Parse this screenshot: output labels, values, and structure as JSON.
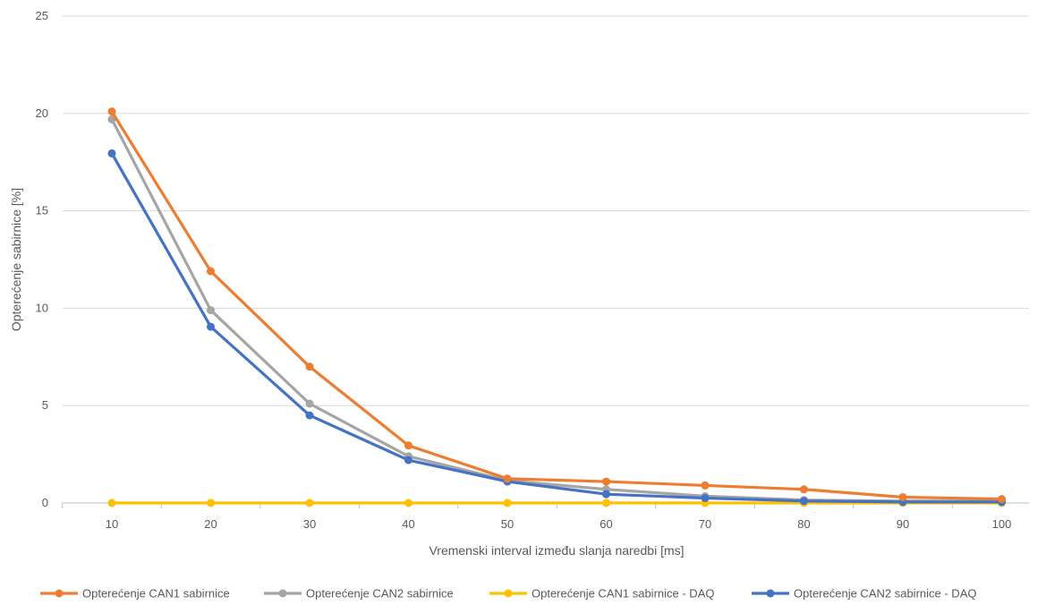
{
  "chart_data": {
    "type": "line",
    "title": "",
    "xlabel": "Vremenski interval između slanja naredbi [ms]",
    "ylabel": "Opterećenje sabirnice [%]",
    "categories": [
      "10",
      "20",
      "30",
      "40",
      "50",
      "60",
      "70",
      "80",
      "90",
      "100"
    ],
    "ylim": [
      0,
      25
    ],
    "yticks": [
      "0",
      "5",
      "10",
      "15",
      "20",
      "25"
    ],
    "grid": "horizontal",
    "legend_position": "bottom",
    "series": [
      {
        "name": "Opterećenje CAN1 sabirnice",
        "color": "#ED7D31",
        "values": [
          20.1,
          11.9,
          7.0,
          2.95,
          1.25,
          1.1,
          0.9,
          0.7,
          0.3,
          0.2
        ]
      },
      {
        "name": "Opterećenje CAN2 sabirnice",
        "color": "#A5A5A5",
        "values": [
          19.7,
          9.9,
          5.1,
          2.4,
          1.15,
          0.7,
          0.35,
          0.15,
          0.1,
          0.1
        ]
      },
      {
        "name": "Opterećenje CAN1 sabirnice - DAQ",
        "color": "#FFC000",
        "values": [
          0,
          0,
          0,
          0,
          0,
          0,
          0,
          0,
          0,
          0
        ]
      },
      {
        "name": "Opterećenje CAN2 sabirnice - DAQ",
        "color": "#4472C4",
        "values": [
          17.95,
          9.05,
          4.5,
          2.2,
          1.1,
          0.45,
          0.25,
          0.1,
          0.05,
          0.05
        ]
      }
    ]
  }
}
